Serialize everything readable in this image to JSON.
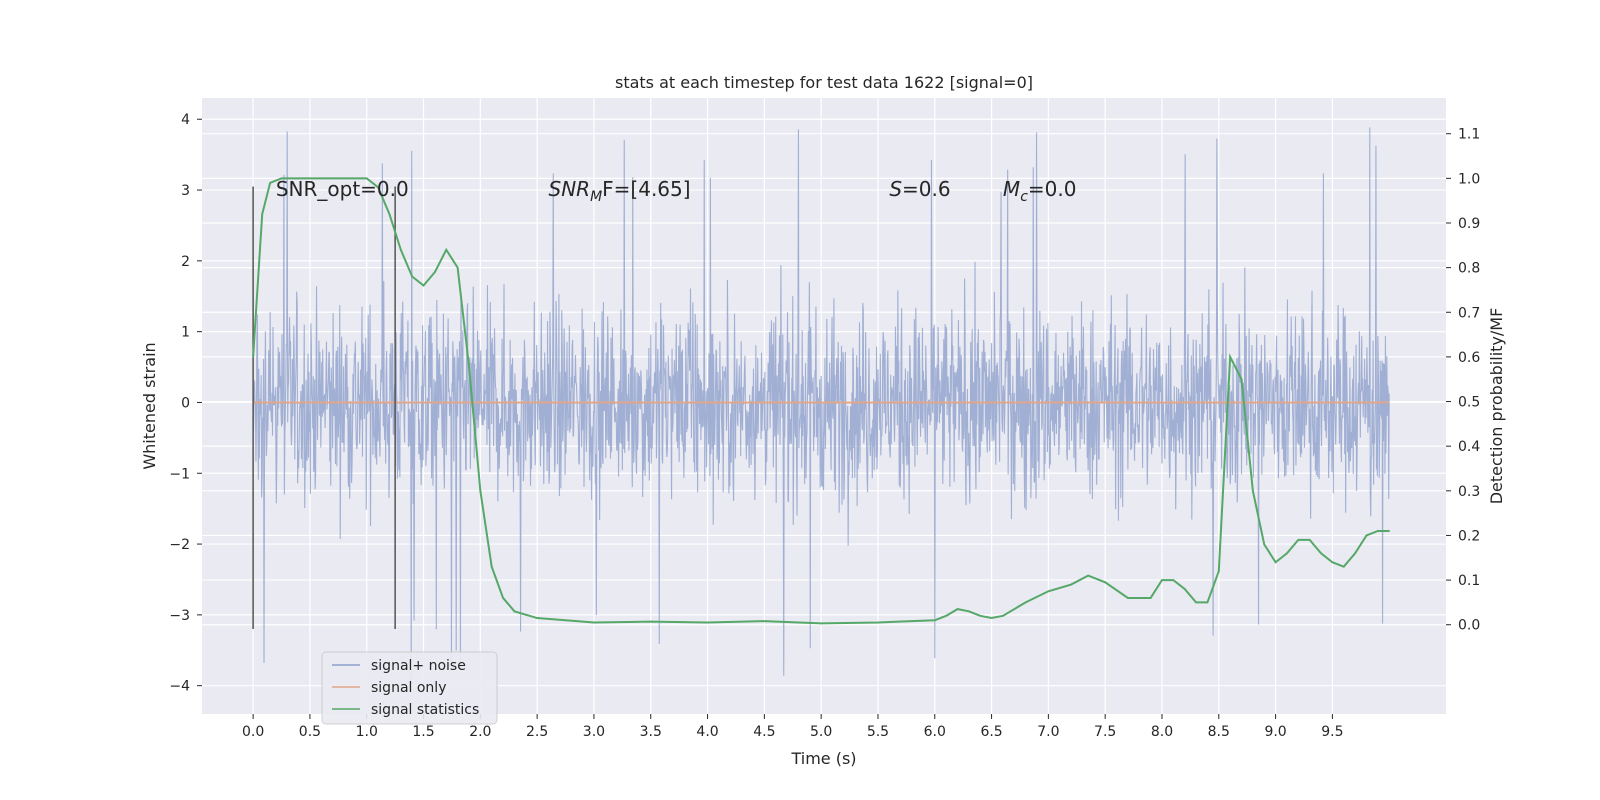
{
  "chart_data": {
    "type": "line",
    "title": "stats at each timestep for test data 1622 [signal=0]",
    "xlabel": "Time (s)",
    "ylabel": "Whitened strain",
    "y2label": "Detection probability/MF",
    "xlim": [
      -0.45,
      10.5
    ],
    "ylim": [
      -4.4,
      4.3
    ],
    "y2lim": [
      -0.2,
      1.18
    ],
    "x_ticks": [
      "0.0",
      "0.5",
      "1.0",
      "1.5",
      "2.0",
      "2.5",
      "3.0",
      "3.5",
      "4.0",
      "4.5",
      "5.0",
      "5.5",
      "6.0",
      "6.5",
      "7.0",
      "7.5",
      "8.0",
      "8.5",
      "9.0",
      "9.5"
    ],
    "y_ticks": [
      "4",
      "3",
      "2",
      "1",
      "0",
      "−1",
      "−2",
      "−3",
      "−4"
    ],
    "y2_ticks": [
      "1.1",
      "1.0",
      "0.9",
      "0.8",
      "0.7",
      "0.6",
      "0.5",
      "0.4",
      "0.3",
      "0.2",
      "0.1",
      "0.0"
    ],
    "grid": true,
    "annotations": [
      {
        "text": "SNR_opt=0.0",
        "x": 0.2,
        "y": 3.0
      },
      {
        "prefix": "SNR",
        "sub": "M",
        "suffix": "F=[4.65]",
        "x": 2.6,
        "y": 3.0
      },
      {
        "prefix": "S",
        "sub": "",
        "suffix": "=0.6",
        "x": 5.6,
        "y": 3.0
      },
      {
        "prefix": "M",
        "sub": "c",
        "suffix": "=0.0",
        "x": 6.6,
        "y": 3.0
      }
    ],
    "vlines": [
      {
        "x": 0.0,
        "ymin": -3.2,
        "ymax": 3.05
      },
      {
        "x": 1.25,
        "ymin": -3.2,
        "ymax": 3.05
      }
    ],
    "series": [
      {
        "name": "signal+ noise",
        "color": "#8da0cb",
        "kind": "noise",
        "t_start": 0.0,
        "t_end": 10.0,
        "envelope": [
          -2.5,
          2.5
        ],
        "extremes": [
          -4.0,
          3.9
        ]
      },
      {
        "name": "signal only",
        "color": "#e1a58a",
        "x": [
          0.0,
          10.0
        ],
        "y": [
          0.0,
          0.0
        ]
      },
      {
        "name": "signal statistics",
        "color": "#55a868",
        "axis": "right",
        "x": [
          0.0,
          0.08,
          0.15,
          0.25,
          0.4,
          0.6,
          0.8,
          1.0,
          1.1,
          1.2,
          1.3,
          1.4,
          1.5,
          1.6,
          1.7,
          1.8,
          1.9,
          2.0,
          2.1,
          2.2,
          2.3,
          2.5,
          3.0,
          3.5,
          4.0,
          4.5,
          5.0,
          5.5,
          6.0,
          6.1,
          6.2,
          6.3,
          6.4,
          6.5,
          6.6,
          6.8,
          7.0,
          7.2,
          7.35,
          7.5,
          7.7,
          7.9,
          8.0,
          8.1,
          8.2,
          8.3,
          8.4,
          8.5,
          8.6,
          8.7,
          8.8,
          8.9,
          9.0,
          9.1,
          9.2,
          9.3,
          9.4,
          9.5,
          9.6,
          9.7,
          9.8,
          9.9,
          10.0
        ],
        "y": [
          0.6,
          0.92,
          0.99,
          1.0,
          1.0,
          1.0,
          1.0,
          1.0,
          0.98,
          0.92,
          0.84,
          0.78,
          0.76,
          0.79,
          0.84,
          0.8,
          0.58,
          0.3,
          0.13,
          0.06,
          0.03,
          0.015,
          0.005,
          0.007,
          0.005,
          0.008,
          0.003,
          0.005,
          0.01,
          0.02,
          0.035,
          0.03,
          0.02,
          0.015,
          0.02,
          0.05,
          0.075,
          0.09,
          0.11,
          0.095,
          0.06,
          0.06,
          0.1,
          0.1,
          0.08,
          0.05,
          0.05,
          0.12,
          0.6,
          0.55,
          0.3,
          0.18,
          0.14,
          0.16,
          0.19,
          0.19,
          0.16,
          0.14,
          0.13,
          0.16,
          0.2,
          0.21,
          0.21
        ]
      }
    ],
    "legend": {
      "placement": "lower-left",
      "entries": [
        "signal+ noise",
        "signal only",
        "signal statistics"
      ]
    }
  }
}
